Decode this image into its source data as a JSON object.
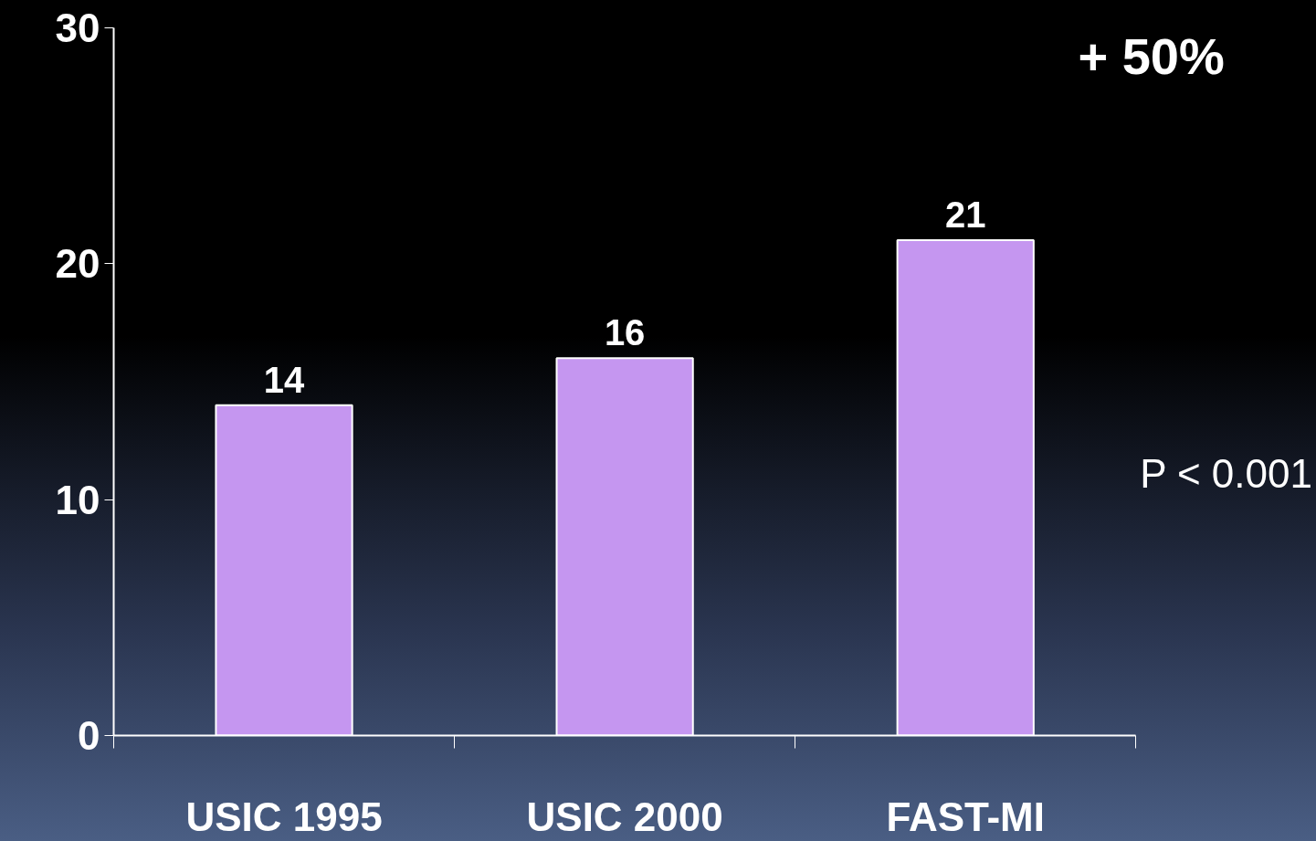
{
  "chart_data": {
    "type": "bar",
    "categories": [
      "USIC 1995",
      "USIC 2000",
      "FAST-MI"
    ],
    "values": [
      14,
      16,
      21
    ],
    "color": "#c596f0",
    "ylim": [
      0,
      30
    ],
    "yticks": [
      0,
      10,
      20,
      30
    ],
    "grid": false,
    "data_labels": true,
    "annotations": [
      "+ 50%",
      "P < 0.001"
    ]
  }
}
